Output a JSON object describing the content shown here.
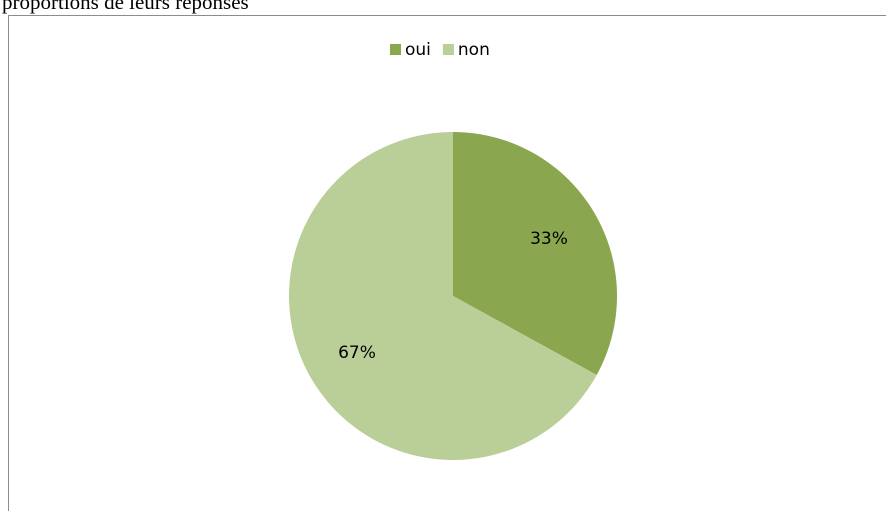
{
  "caption": "proportions de leurs réponses",
  "chart_data": {
    "type": "pie",
    "categories": [
      "oui",
      "non"
    ],
    "values": [
      33,
      67
    ],
    "value_labels": [
      "33%",
      "67%"
    ],
    "colors": [
      "#8aa64e",
      "#bacf98"
    ],
    "legend": "top"
  }
}
